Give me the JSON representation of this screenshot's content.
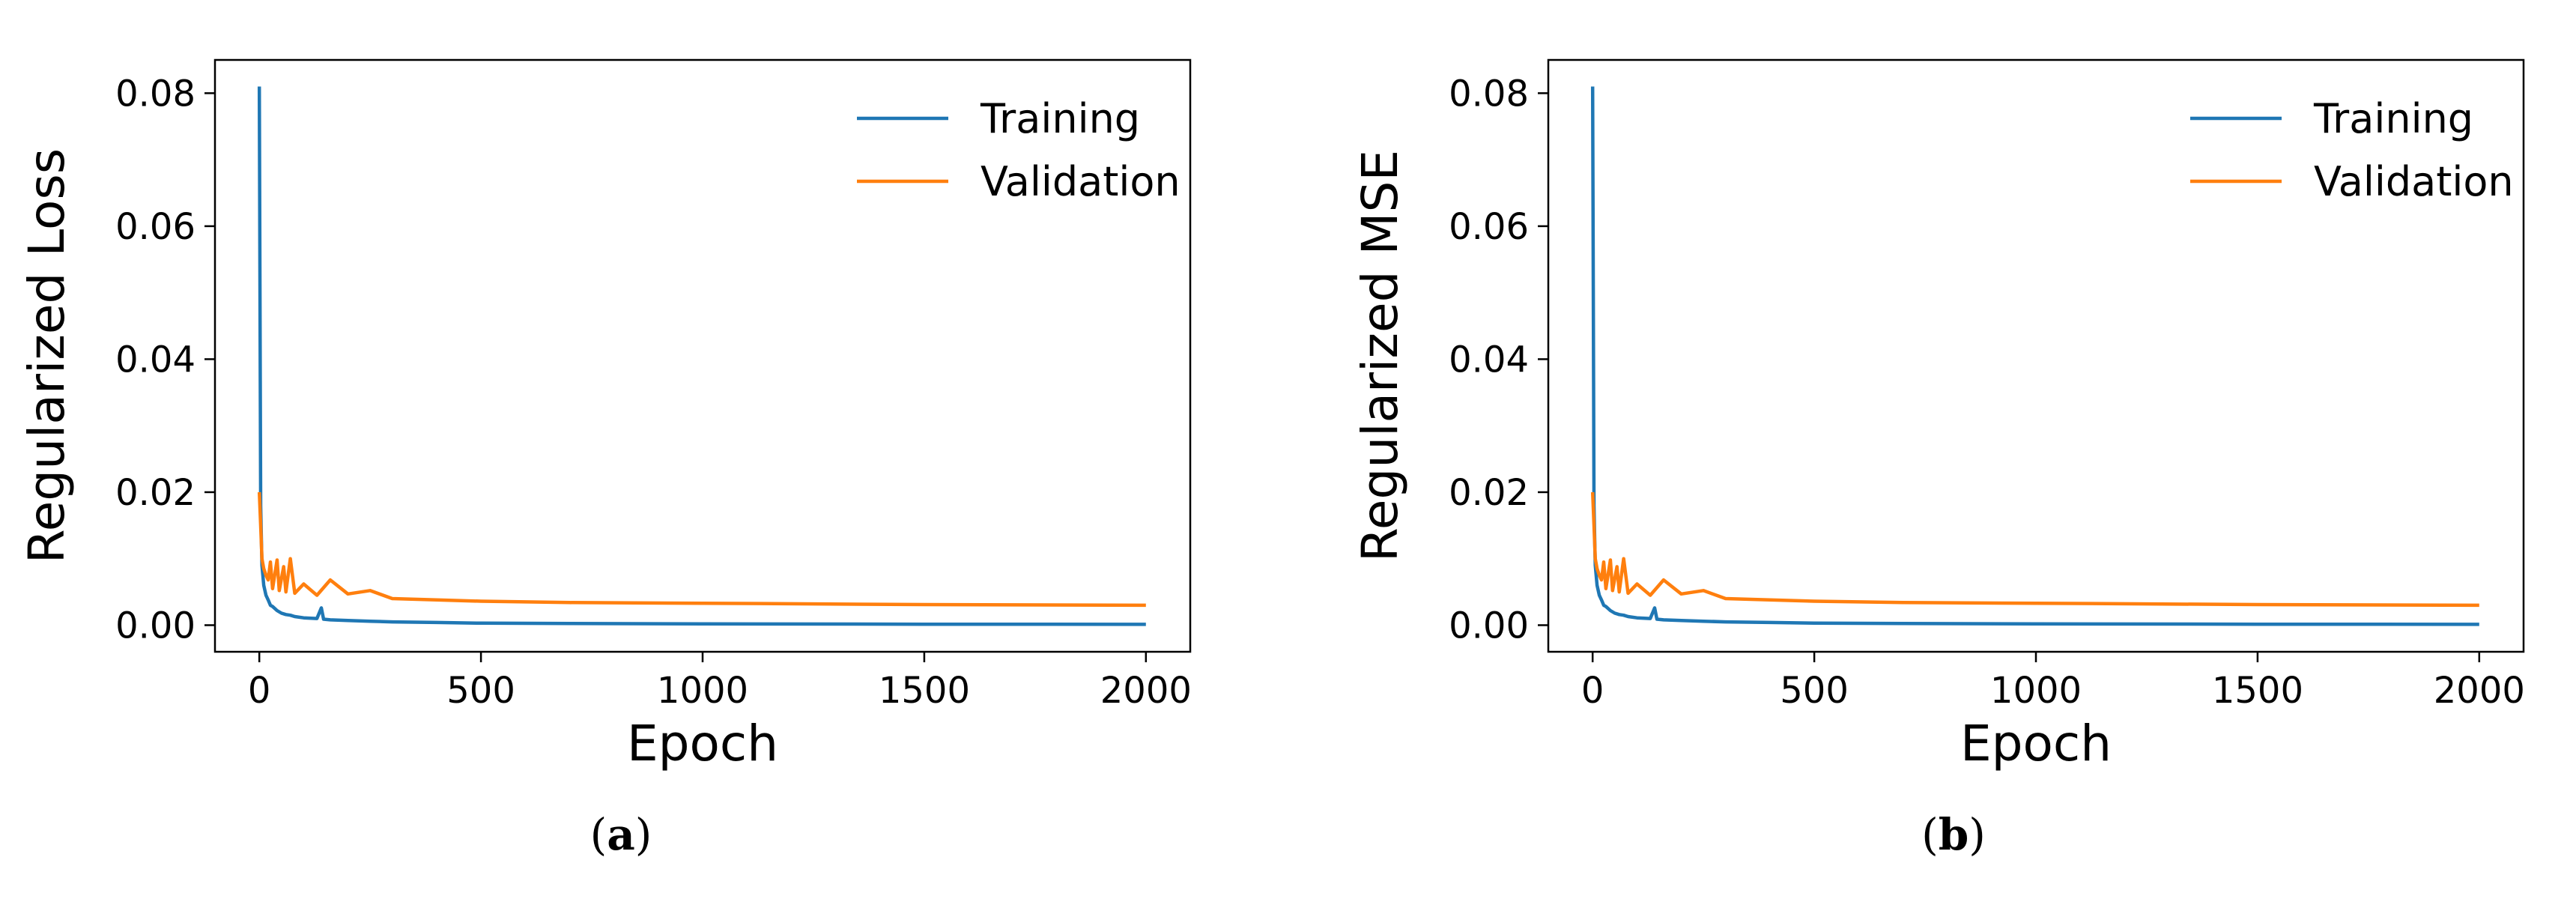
{
  "chart_data": [
    {
      "type": "line",
      "panel": "a",
      "caption_open": "(",
      "caption_letter": "a",
      "caption_close": ")",
      "xlabel": "Epoch",
      "ylabel": "Regularized Loss",
      "xlim": [
        -100,
        2100
      ],
      "ylim": [
        -0.004,
        0.085
      ],
      "xticks": [
        0,
        500,
        1000,
        1500,
        2000
      ],
      "yticks": [
        0.0,
        0.02,
        0.04,
        0.06,
        0.08
      ],
      "ytick_labels": [
        "0.00",
        "0.02",
        "0.04",
        "0.06",
        "0.08"
      ],
      "legend_position": "top-right",
      "series": [
        {
          "name": "Training",
          "color": "#1f77b4",
          "points": [
            [
              0,
              0.081
            ],
            [
              3,
              0.018
            ],
            [
              6,
              0.009
            ],
            [
              10,
              0.006
            ],
            [
              15,
              0.0045
            ],
            [
              20,
              0.0038
            ],
            [
              25,
              0.003
            ],
            [
              30,
              0.0028
            ],
            [
              40,
              0.0022
            ],
            [
              50,
              0.0018
            ],
            [
              60,
              0.0016
            ],
            [
              70,
              0.0015
            ],
            [
              80,
              0.0013
            ],
            [
              100,
              0.0011
            ],
            [
              130,
              0.001
            ],
            [
              140,
              0.0026
            ],
            [
              145,
              0.0009
            ],
            [
              160,
              0.0008
            ],
            [
              200,
              0.0007
            ],
            [
              250,
              0.0006
            ],
            [
              300,
              0.0005
            ],
            [
              400,
              0.0004
            ],
            [
              500,
              0.0003
            ],
            [
              700,
              0.00025
            ],
            [
              1000,
              0.0002
            ],
            [
              1500,
              0.00015
            ],
            [
              2000,
              0.00012
            ]
          ]
        },
        {
          "name": "Validation",
          "color": "#ff7f0e",
          "points": [
            [
              0,
              0.02
            ],
            [
              3,
              0.015
            ],
            [
              6,
              0.01
            ],
            [
              10,
              0.0085
            ],
            [
              15,
              0.0075
            ],
            [
              20,
              0.0068
            ],
            [
              25,
              0.0095
            ],
            [
              30,
              0.0055
            ],
            [
              40,
              0.0098
            ],
            [
              45,
              0.0052
            ],
            [
              55,
              0.0088
            ],
            [
              60,
              0.005
            ],
            [
              70,
              0.01
            ],
            [
              80,
              0.0048
            ],
            [
              100,
              0.0062
            ],
            [
              130,
              0.0045
            ],
            [
              160,
              0.0068
            ],
            [
              200,
              0.0047
            ],
            [
              250,
              0.0052
            ],
            [
              300,
              0.004
            ],
            [
              400,
              0.0038
            ],
            [
              500,
              0.0036
            ],
            [
              700,
              0.0034
            ],
            [
              1000,
              0.0033
            ],
            [
              1500,
              0.0031
            ],
            [
              2000,
              0.003
            ]
          ]
        }
      ]
    },
    {
      "type": "line",
      "panel": "b",
      "caption_open": "(",
      "caption_letter": "b",
      "caption_close": ")",
      "xlabel": "Epoch",
      "ylabel": "Regularized MSE",
      "xlim": [
        -100,
        2100
      ],
      "ylim": [
        -0.004,
        0.085
      ],
      "xticks": [
        0,
        500,
        1000,
        1500,
        2000
      ],
      "yticks": [
        0.0,
        0.02,
        0.04,
        0.06,
        0.08
      ],
      "ytick_labels": [
        "0.00",
        "0.02",
        "0.04",
        "0.06",
        "0.08"
      ],
      "legend_position": "top-right",
      "series": [
        {
          "name": "Training",
          "color": "#1f77b4",
          "points": [
            [
              0,
              0.081
            ],
            [
              3,
              0.018
            ],
            [
              6,
              0.009
            ],
            [
              10,
              0.006
            ],
            [
              15,
              0.0045
            ],
            [
              20,
              0.0038
            ],
            [
              25,
              0.003
            ],
            [
              30,
              0.0028
            ],
            [
              40,
              0.0022
            ],
            [
              50,
              0.0018
            ],
            [
              60,
              0.0016
            ],
            [
              70,
              0.0015
            ],
            [
              80,
              0.0013
            ],
            [
              100,
              0.0011
            ],
            [
              130,
              0.001
            ],
            [
              140,
              0.0026
            ],
            [
              145,
              0.0009
            ],
            [
              160,
              0.0008
            ],
            [
              200,
              0.0007
            ],
            [
              250,
              0.0006
            ],
            [
              300,
              0.0005
            ],
            [
              400,
              0.0004
            ],
            [
              500,
              0.0003
            ],
            [
              700,
              0.00025
            ],
            [
              1000,
              0.0002
            ],
            [
              1500,
              0.00015
            ],
            [
              2000,
              0.00012
            ]
          ]
        },
        {
          "name": "Validation",
          "color": "#ff7f0e",
          "points": [
            [
              0,
              0.02
            ],
            [
              3,
              0.015
            ],
            [
              6,
              0.01
            ],
            [
              10,
              0.0085
            ],
            [
              15,
              0.0075
            ],
            [
              20,
              0.0068
            ],
            [
              25,
              0.0095
            ],
            [
              30,
              0.0055
            ],
            [
              40,
              0.0098
            ],
            [
              45,
              0.0052
            ],
            [
              55,
              0.0088
            ],
            [
              60,
              0.005
            ],
            [
              70,
              0.01
            ],
            [
              80,
              0.0048
            ],
            [
              100,
              0.0062
            ],
            [
              130,
              0.0045
            ],
            [
              160,
              0.0068
            ],
            [
              200,
              0.0047
            ],
            [
              250,
              0.0052
            ],
            [
              300,
              0.004
            ],
            [
              400,
              0.0038
            ],
            [
              500,
              0.0036
            ],
            [
              700,
              0.0034
            ],
            [
              1000,
              0.0033
            ],
            [
              1500,
              0.0031
            ],
            [
              2000,
              0.003
            ]
          ]
        }
      ]
    }
  ]
}
